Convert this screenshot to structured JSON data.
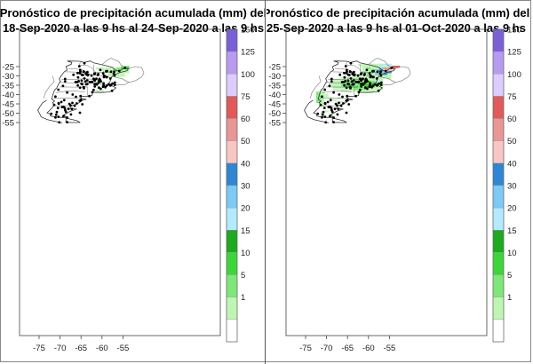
{
  "maps": [
    {
      "title_line1": "Pronóstico de precipitación acumulada (mm) del",
      "title_line2": "18-Sep-2020 a las 9 hs al 24-Sep-2020 a las 9 hs"
    },
    {
      "title_line1": "Pronóstico de precipitación acumulada (mm) del",
      "title_line2": "25-Sep-2020 a las 9 hs al 01-Oct-2020 a las 9 hs"
    }
  ],
  "x_ticks": [
    "-75",
    "-70",
    "-65",
    "-60",
    "-55"
  ],
  "y_ticks": [
    "-25",
    "-30",
    "-35",
    "-40",
    "-45",
    "-50",
    "-55"
  ],
  "colorbar": {
    "labels": [
      "150",
      "125",
      "100",
      "75",
      "60",
      "50",
      "40",
      "30",
      "20",
      "15",
      "10",
      "5",
      "1"
    ],
    "colors": [
      "#ffffff",
      "#bff5b3",
      "#7fe67a",
      "#3dd63a",
      "#1fa91f",
      "#b3eaff",
      "#7ccaf5",
      "#2f86d1",
      "#f9c6c6",
      "#e99696",
      "#e05a5a",
      "#ddccff",
      "#b69bf0",
      "#7a5fd6"
    ]
  }
}
